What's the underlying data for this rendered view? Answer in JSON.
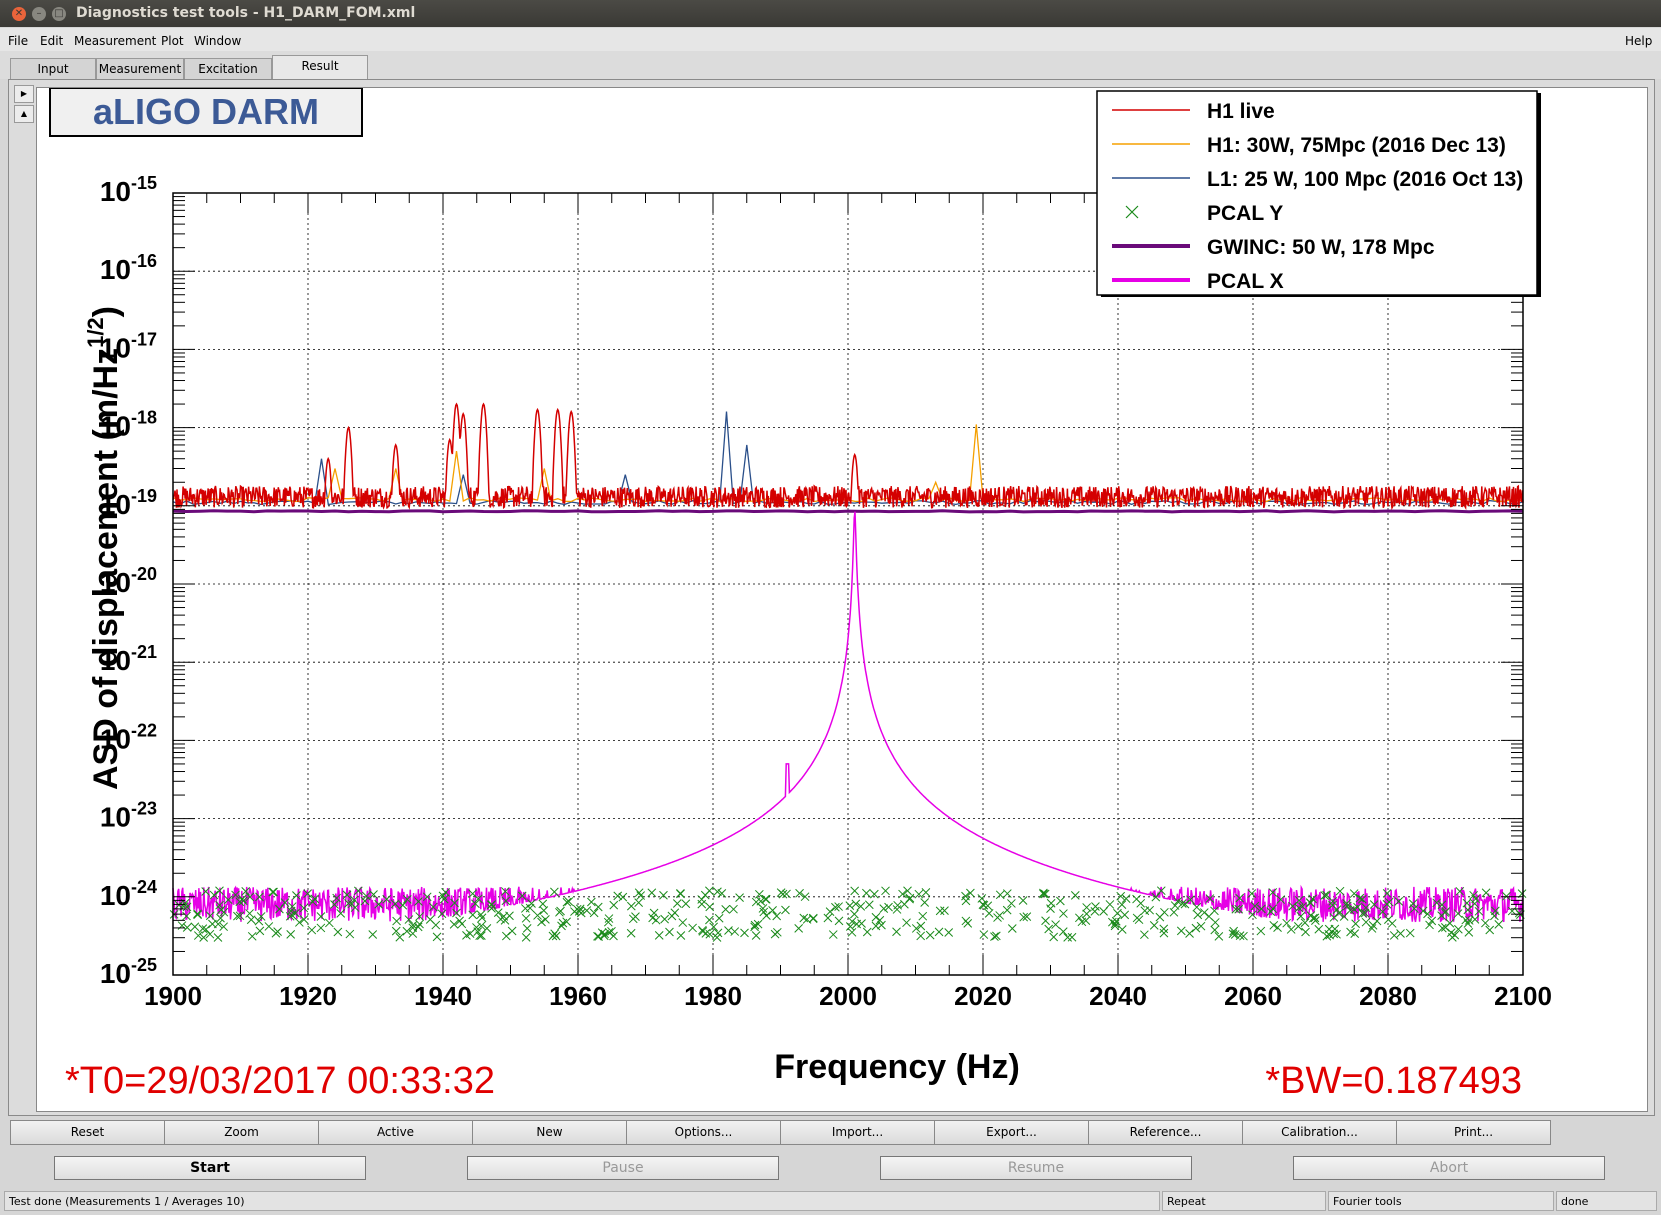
{
  "window": {
    "title": "Diagnostics test tools - H1_DARM_FOM.xml"
  },
  "menu": {
    "file": "File",
    "edit": "Edit",
    "measurement": "Measurement",
    "plot": "Plot",
    "window": "Window",
    "help": "Help"
  },
  "tabs": [
    "Input",
    "Measurement",
    "Excitation",
    "Result"
  ],
  "plot": {
    "badge": "aLIGO DARM",
    "t0": "*T0=29/03/2017 00:33:32",
    "bw": "*BW=0.187493"
  },
  "chart_data": {
    "type": "line",
    "xlabel": "Frequency (Hz)",
    "ylabel": "ASD of displacement (m/Hz^1/2)",
    "xlim": [
      1900,
      2100
    ],
    "ylim": [
      1e-25,
      1e-15
    ],
    "yscale": "log",
    "grid": true,
    "legend_position": "top-right",
    "x_ticks": [
      "1900",
      "1920",
      "1940",
      "1960",
      "1980",
      "2000",
      "2020",
      "2040",
      "2060",
      "2080",
      "2100"
    ],
    "y_tick_exponents": [
      "-15",
      "-16",
      "-17",
      "-18",
      "-19",
      "-20",
      "-21",
      "-22",
      "-23",
      "-24",
      "-25"
    ],
    "series": [
      {
        "name": "H1 live",
        "color": "#d40000",
        "baseline": 1.3e-19,
        "peaks": [
          [
            1923,
            4e-19
          ],
          [
            1926,
            1e-18
          ],
          [
            1933,
            6e-19
          ],
          [
            1941,
            7e-19
          ],
          [
            1942,
            2e-18
          ],
          [
            1943,
            1.5e-18
          ],
          [
            1946,
            2e-18
          ],
          [
            1954,
            1.7e-18
          ],
          [
            1957,
            1.7e-18
          ],
          [
            1959,
            1.6e-18
          ],
          [
            2001,
            4.5e-19
          ]
        ]
      },
      {
        "name": "H1: 30W, 75Mpc (2016 Dec 13)",
        "color": "#f5a000",
        "baseline": 1.2e-19,
        "peaks": [
          [
            1924,
            3e-19
          ],
          [
            1933,
            3e-19
          ],
          [
            1942,
            5e-19
          ],
          [
            1955,
            3e-19
          ],
          [
            2013,
            2e-19
          ],
          [
            2019,
            1.1e-18
          ]
        ]
      },
      {
        "name": "L1: 25 W, 100 Mpc (2016 Oct 13)",
        "color": "#2a4f8a",
        "baseline": 1.1e-19,
        "peaks": [
          [
            1922,
            4e-19
          ],
          [
            1943,
            2.5e-19
          ],
          [
            1967,
            2.5e-19
          ],
          [
            1982,
            1.6e-18
          ],
          [
            1985,
            6e-19
          ]
        ]
      },
      {
        "name": "PCAL Y",
        "color": "#1a8a1a",
        "baseline": 6e-25
      },
      {
        "name": "GWINC: 50 W, 178 Mpc",
        "color": "#6a0a7a",
        "baseline": 8.5e-20
      },
      {
        "name": "PCAL X",
        "color": "#e600e6",
        "baseline": 8e-25,
        "peaks": [
          [
            1991,
            5e-23
          ],
          [
            2001,
            9e-20
          ]
        ]
      }
    ]
  },
  "buttons_row1": [
    "Reset",
    "Zoom",
    "Active",
    "New",
    "Options...",
    "Import...",
    "Export...",
    "Reference...",
    "Calibration...",
    "Print..."
  ],
  "buttons_row2": {
    "start": "Start",
    "pause": "Pause",
    "resume": "Resume",
    "abort": "Abort"
  },
  "status": {
    "left": "Test done (Measurements 1 / Averages 10)",
    "repeat": "Repeat",
    "fourier": "Fourier tools",
    "done": "done"
  }
}
